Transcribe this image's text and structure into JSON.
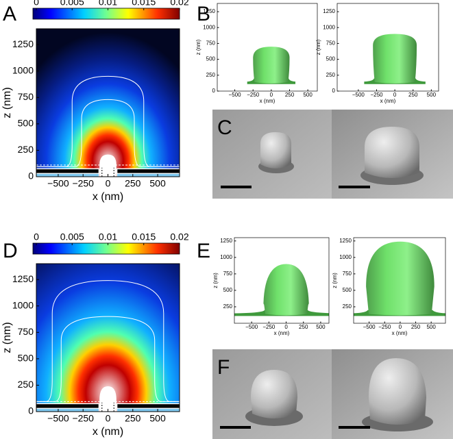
{
  "panels": [
    "A",
    "B",
    "C",
    "D",
    "E",
    "F"
  ],
  "chart_data": [
    {
      "type": "heatmap",
      "xlabel": "x (nm)",
      "ylabel": "z (nm)",
      "xlim": [
        -720,
        720
      ],
      "ylim": [
        0,
        1400
      ],
      "xticks": [
        {
          "value": -500,
          "label": "−500"
        },
        {
          "value": -250,
          "label": "−250"
        },
        0,
        250,
        500
      ],
      "yticks": [
        0,
        250,
        500,
        750,
        1000,
        1250
      ],
      "colorbar_lim": [
        0,
        0.02
      ],
      "colorbar_ticks": [
        0,
        0.005,
        0.01,
        0.015,
        0.02
      ]
    },
    {
      "type": "surface",
      "xlabel": "x (nm)",
      "ylabel": "z (nm)",
      "xlim": [
        -740,
        630
      ],
      "ylim": [
        0,
        1380
      ],
      "color": "#6fe06a",
      "xticks": [
        {
          "value": -500,
          "label": "−500"
        },
        {
          "value": -250,
          "label": "−250"
        },
        0,
        250,
        500
      ],
      "yticks": [
        0,
        250,
        500,
        750,
        1000,
        1250
      ]
    },
    {
      "type": "surface",
      "xlabel": "x (nm)",
      "ylabel": "z (nm)",
      "xlim": [
        -790,
        600
      ],
      "ylim": [
        0,
        1380
      ],
      "color": "#6fe06a",
      "xticks": [
        {
          "value": -500,
          "label": "−500"
        },
        {
          "value": -250,
          "label": "−250"
        },
        0,
        250,
        500
      ],
      "yticks": [
        0,
        250,
        500,
        750,
        1000,
        1250
      ]
    },
    {
      "type": "heatmap",
      "xlabel": "x (nm)",
      "ylabel": "z (nm)",
      "xlim": [
        -720,
        720
      ],
      "ylim": [
        0,
        1400
      ],
      "xticks": [
        {
          "value": -500,
          "label": "−500"
        },
        {
          "value": -250,
          "label": "−250"
        },
        0,
        250,
        500
      ],
      "yticks": [
        0,
        250,
        500,
        750,
        1000,
        1250
      ],
      "colorbar_lim": [
        0,
        0.02
      ],
      "colorbar_ticks": [
        0,
        0.005,
        0.01,
        0.015,
        0.02
      ]
    },
    {
      "type": "surface",
      "xlabel": "x (nm)",
      "ylabel": "z (nm)",
      "xlim": [
        -750,
        620
      ],
      "ylim": [
        0,
        1300
      ],
      "color": "#6fe06a",
      "xticks": [
        {
          "value": -500,
          "label": "−500"
        },
        {
          "value": -250,
          "label": "−250"
        },
        0,
        250,
        500
      ],
      "yticks": [
        250,
        500,
        750,
        1000,
        1250
      ]
    },
    {
      "type": "surface",
      "xlabel": "x (nm)",
      "ylabel": "z (nm)",
      "xlim": [
        -750,
        730
      ],
      "ylim": [
        0,
        1300
      ],
      "color": "#6fe06a",
      "xticks": [
        {
          "value": -500,
          "label": "−500"
        },
        {
          "value": -250,
          "label": "−250"
        },
        0,
        250,
        500
      ],
      "yticks": [
        250,
        500,
        750,
        1000,
        1250
      ]
    }
  ]
}
